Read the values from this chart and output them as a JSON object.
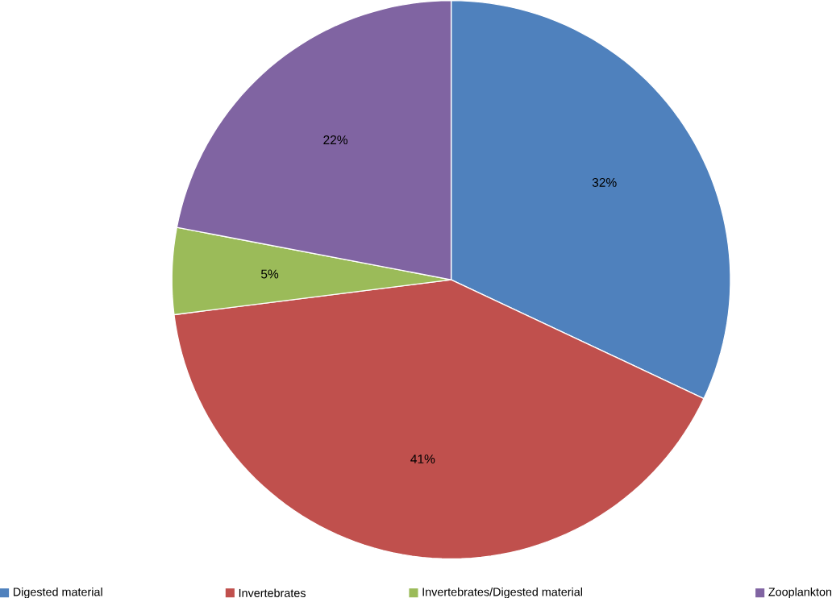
{
  "chart_data": {
    "type": "pie",
    "categories": [
      "Digested material",
      "Invertebrates",
      "Invertebrates/Digested material",
      "Zooplankton"
    ],
    "values": [
      32,
      41,
      5,
      22
    ],
    "colors": [
      "#4f81bd",
      "#c0504d",
      "#9bbb59",
      "#8064a2"
    ],
    "value_labels": [
      "32%",
      "41%",
      "5%",
      "22%"
    ],
    "legend": "bottom"
  }
}
